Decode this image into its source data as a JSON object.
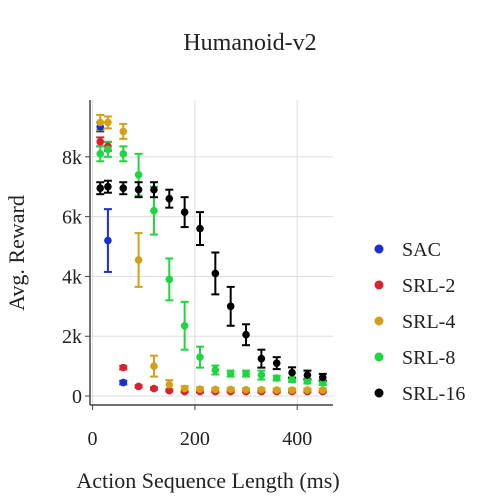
{
  "chart_data": {
    "type": "scatter",
    "title": "Humanoid-v2",
    "xlabel": "Action Sequence Length (ms)",
    "ylabel": "Avg. Reward",
    "xlim": [
      -5,
      470
    ],
    "ylim": [
      -300,
      9900
    ],
    "x_ticks": [
      0,
      200,
      400
    ],
    "x_tick_labels": [
      "0",
      "200",
      "400"
    ],
    "y_ticks": [
      0,
      2000,
      4000,
      6000,
      8000
    ],
    "y_tick_labels": [
      "0",
      "2k",
      "4k",
      "6k",
      "8k"
    ],
    "grid": true,
    "legend_position": "right",
    "series": [
      {
        "name": "SAC",
        "color": "#1a2fd1",
        "points": [
          {
            "x": 15,
            "y": 9000,
            "err": 150
          },
          {
            "x": 30,
            "y": 5200,
            "err": 1050
          },
          {
            "x": 60,
            "y": 450,
            "err": 60
          }
        ]
      },
      {
        "name": "SRL-2",
        "color": "#d8232f",
        "points": [
          {
            "x": 15,
            "y": 8500,
            "err": 150
          },
          {
            "x": 30,
            "y": 8350,
            "err": 150
          },
          {
            "x": 60,
            "y": 950,
            "err": 60
          },
          {
            "x": 90,
            "y": 320,
            "err": 40
          },
          {
            "x": 120,
            "y": 250,
            "err": 40
          },
          {
            "x": 150,
            "y": 180,
            "err": 30
          },
          {
            "x": 180,
            "y": 150,
            "err": 30
          },
          {
            "x": 210,
            "y": 150,
            "err": 30
          },
          {
            "x": 240,
            "y": 150,
            "err": 30
          },
          {
            "x": 270,
            "y": 150,
            "err": 30
          },
          {
            "x": 300,
            "y": 150,
            "err": 30
          },
          {
            "x": 330,
            "y": 150,
            "err": 30
          },
          {
            "x": 360,
            "y": 150,
            "err": 30
          },
          {
            "x": 390,
            "y": 150,
            "err": 30
          },
          {
            "x": 420,
            "y": 150,
            "err": 30
          },
          {
            "x": 450,
            "y": 150,
            "err": 30
          }
        ]
      },
      {
        "name": "SRL-4",
        "color": "#d4a017",
        "points": [
          {
            "x": 15,
            "y": 9150,
            "err": 250
          },
          {
            "x": 30,
            "y": 9150,
            "err": 200
          },
          {
            "x": 60,
            "y": 8850,
            "err": 250
          },
          {
            "x": 90,
            "y": 4550,
            "err": 900
          },
          {
            "x": 120,
            "y": 1000,
            "err": 350
          },
          {
            "x": 150,
            "y": 380,
            "err": 150
          },
          {
            "x": 180,
            "y": 250,
            "err": 80
          },
          {
            "x": 210,
            "y": 230,
            "err": 60
          },
          {
            "x": 240,
            "y": 220,
            "err": 50
          },
          {
            "x": 270,
            "y": 220,
            "err": 50
          },
          {
            "x": 300,
            "y": 210,
            "err": 50
          },
          {
            "x": 330,
            "y": 210,
            "err": 50
          },
          {
            "x": 360,
            "y": 200,
            "err": 50
          },
          {
            "x": 390,
            "y": 200,
            "err": 50
          },
          {
            "x": 420,
            "y": 200,
            "err": 50
          },
          {
            "x": 450,
            "y": 200,
            "err": 50
          }
        ]
      },
      {
        "name": "SRL-8",
        "color": "#1fd641",
        "points": [
          {
            "x": 15,
            "y": 8100,
            "err": 250
          },
          {
            "x": 30,
            "y": 8250,
            "err": 250
          },
          {
            "x": 60,
            "y": 8100,
            "err": 250
          },
          {
            "x": 90,
            "y": 7400,
            "err": 700
          },
          {
            "x": 120,
            "y": 6200,
            "err": 800
          },
          {
            "x": 150,
            "y": 3900,
            "err": 700
          },
          {
            "x": 180,
            "y": 2350,
            "err": 800
          },
          {
            "x": 210,
            "y": 1300,
            "err": 350
          },
          {
            "x": 240,
            "y": 870,
            "err": 150
          },
          {
            "x": 270,
            "y": 750,
            "err": 100
          },
          {
            "x": 300,
            "y": 750,
            "err": 100
          },
          {
            "x": 330,
            "y": 700,
            "err": 150
          },
          {
            "x": 360,
            "y": 600,
            "err": 80
          },
          {
            "x": 390,
            "y": 550,
            "err": 80
          },
          {
            "x": 420,
            "y": 500,
            "err": 80
          },
          {
            "x": 450,
            "y": 450,
            "err": 80
          }
        ]
      },
      {
        "name": "SRL-16",
        "color": "#000000",
        "points": [
          {
            "x": 15,
            "y": 6950,
            "err": 200
          },
          {
            "x": 30,
            "y": 7000,
            "err": 200
          },
          {
            "x": 60,
            "y": 6950,
            "err": 200
          },
          {
            "x": 90,
            "y": 6900,
            "err": 250
          },
          {
            "x": 120,
            "y": 6900,
            "err": 250
          },
          {
            "x": 150,
            "y": 6600,
            "err": 300
          },
          {
            "x": 180,
            "y": 6150,
            "err": 500
          },
          {
            "x": 210,
            "y": 5600,
            "err": 550
          },
          {
            "x": 240,
            "y": 4100,
            "err": 700
          },
          {
            "x": 270,
            "y": 3000,
            "err": 650
          },
          {
            "x": 300,
            "y": 2050,
            "err": 350
          },
          {
            "x": 330,
            "y": 1250,
            "err": 300
          },
          {
            "x": 360,
            "y": 1100,
            "err": 200
          },
          {
            "x": 390,
            "y": 780,
            "err": 180
          },
          {
            "x": 420,
            "y": 700,
            "err": 150
          },
          {
            "x": 450,
            "y": 620,
            "err": 120
          }
        ]
      }
    ]
  }
}
